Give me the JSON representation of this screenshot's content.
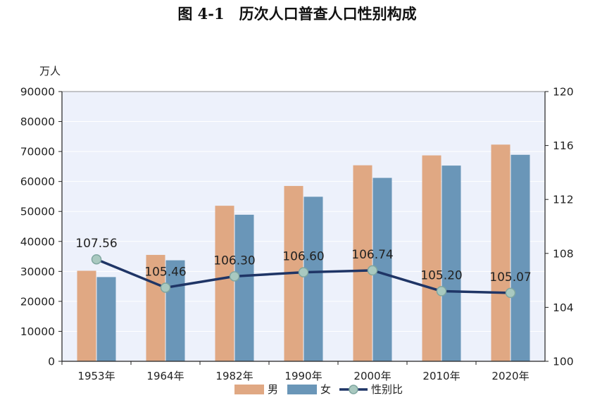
{
  "colors": {
    "male": "#E0A883",
    "female": "#6A96B8",
    "line": "#1F3566",
    "marker_fill": "#A9C9C0",
    "plot_bg": "#EDF1FB"
  },
  "chart_data": {
    "type": "bar",
    "title": "图 4-1　历次人口普查人口性别构成",
    "y_unit_label": "万人",
    "categories": [
      "1953年",
      "1964年",
      "1982年",
      "1990年",
      "2000年",
      "2010年",
      "2020年"
    ],
    "series": [
      {
        "name": "男",
        "type": "bar",
        "axis": "left",
        "values": [
          30200,
          35500,
          51900,
          58500,
          65400,
          68700,
          72300
        ]
      },
      {
        "name": "女",
        "type": "bar",
        "axis": "left",
        "values": [
          28100,
          33700,
          48900,
          54900,
          61200,
          65300,
          68900
        ]
      },
      {
        "name": "性别比",
        "type": "line",
        "axis": "right",
        "values": [
          107.56,
          105.46,
          106.3,
          106.6,
          106.74,
          105.2,
          105.07
        ]
      }
    ],
    "data_labels": [
      "107.56",
      "105.46",
      "106.30",
      "106.60",
      "106.74",
      "105.20",
      "105.07"
    ],
    "ylim_left": [
      0,
      90000
    ],
    "yticks_left": [
      "0",
      "10000",
      "20000",
      "30000",
      "40000",
      "50000",
      "60000",
      "70000",
      "80000",
      "90000"
    ],
    "ylim_right": [
      100,
      120
    ],
    "yticks_right": [
      "100",
      "104",
      "108",
      "112",
      "116",
      "120"
    ],
    "legend": [
      "男",
      "女",
      "性别比"
    ],
    "legend_position": "bottom"
  }
}
